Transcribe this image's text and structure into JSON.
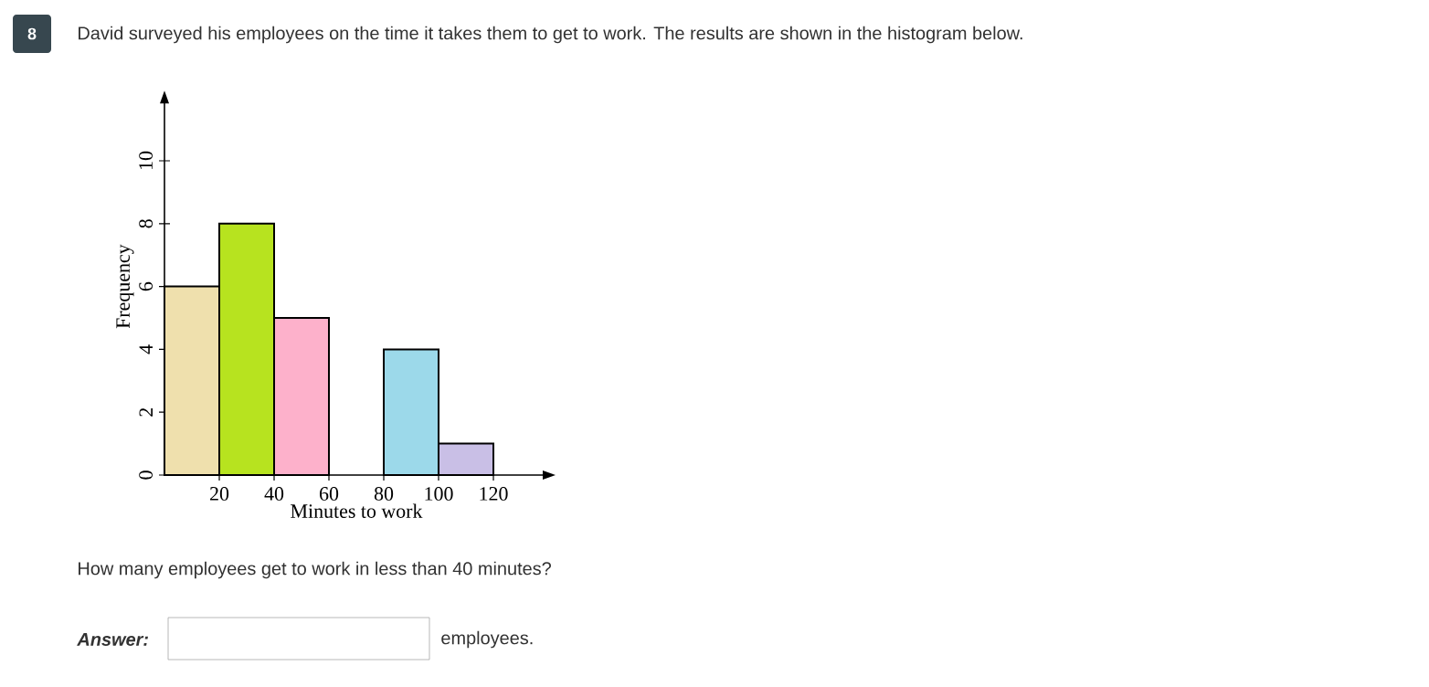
{
  "chart_data": {
    "type": "histogram",
    "title": "David surveyed his employees on the time it takes them to get to work. The results are shown in the histogram below.",
    "xlabel": "Minutes to work",
    "ylabel": "Frequency",
    "bins": [
      0,
      20,
      40,
      60,
      80,
      100,
      120
    ],
    "values": [
      6,
      8,
      5,
      0,
      4,
      1
    ],
    "colors": [
      "#efe0ad",
      "#b7e31f",
      "#fdb1cb",
      null,
      "#9cd9ea",
      "#c9bfe6"
    ],
    "xlim": [
      0,
      140
    ],
    "ylim": [
      0,
      12
    ],
    "xticks": [
      20,
      40,
      60,
      80,
      100,
      120
    ],
    "yticks": [
      0,
      2,
      4,
      6,
      8,
      10
    ],
    "annotations": [
      "8",
      "How many employees get to work in less than 40 minutes?",
      "Answer:",
      "employees."
    ]
  }
}
